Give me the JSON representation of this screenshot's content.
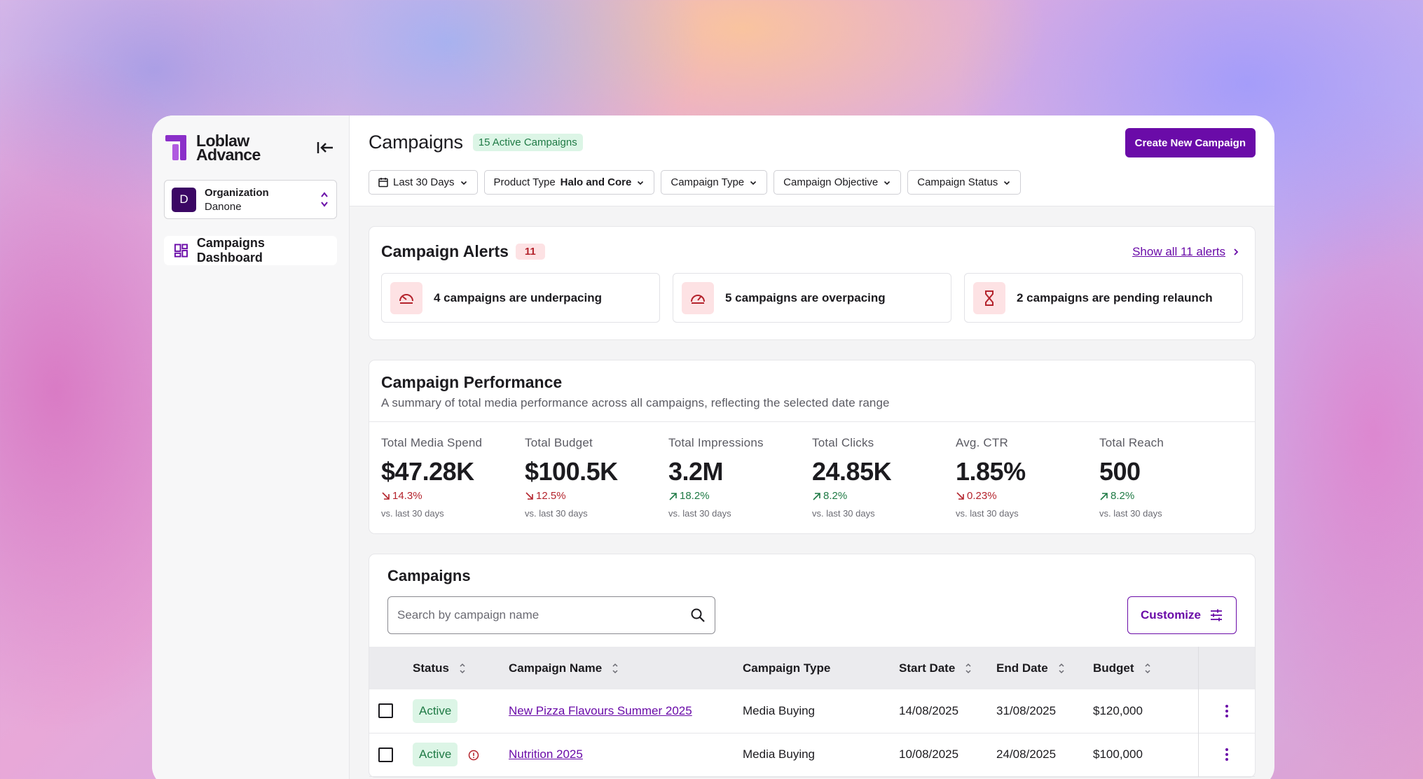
{
  "brand": {
    "logo_line1": "Loblaw",
    "logo_line2": "Advance",
    "accent": "#6a0ba8"
  },
  "sidebar": {
    "org_initial": "D",
    "org_label": "Organization",
    "org_value": "Danone",
    "nav": [
      {
        "label": "Campaigns Dashboard",
        "icon": "dashboard-grid-icon"
      }
    ]
  },
  "header": {
    "title": "Campaigns",
    "active_badge": "15 Active Campaigns",
    "create_button": "Create New Campaign",
    "filters": {
      "date": "Last 30 Days",
      "product_type_label": "Product Type",
      "product_type_value": "Halo and Core",
      "campaign_type": "Campaign Type",
      "campaign_objective": "Campaign Objective",
      "campaign_status": "Campaign Status"
    }
  },
  "alerts": {
    "title": "Campaign Alerts",
    "count": "11",
    "show_all": "Show all 11 alerts",
    "items": [
      {
        "text": "4 campaigns are underpacing",
        "icon": "speedometer-low-icon"
      },
      {
        "text": "5 campaigns are overpacing",
        "icon": "speedometer-high-icon"
      },
      {
        "text": "2 campaigns are pending relaunch",
        "icon": "hourglass-icon"
      }
    ]
  },
  "performance": {
    "title": "Campaign Performance",
    "subtitle": "A summary of total media performance across all campaigns, reflecting the selected date range",
    "metrics": [
      {
        "label": "Total Media Spend",
        "value": "$47.28K",
        "delta": "14.3%",
        "direction": "down",
        "note": "vs. last 30 days"
      },
      {
        "label": "Total Budget",
        "value": "$100.5K",
        "delta": "12.5%",
        "direction": "down",
        "note": "vs. last 30 days"
      },
      {
        "label": "Total Impressions",
        "value": "3.2M",
        "delta": "18.2%",
        "direction": "up",
        "note": "vs. last 30 days"
      },
      {
        "label": "Total Clicks",
        "value": "24.85K",
        "delta": "8.2%",
        "direction": "up",
        "note": "vs. last 30 days"
      },
      {
        "label": "Avg. CTR",
        "value": "1.85%",
        "delta": "0.23%",
        "direction": "down",
        "note": "vs. last 30 days"
      },
      {
        "label": "Total Reach",
        "value": "500",
        "delta": "8.2%",
        "direction": "up",
        "note": "vs. last 30 days"
      }
    ]
  },
  "campaigns": {
    "title": "Campaigns",
    "search_placeholder": "Search by campaign name",
    "customize": "Customize",
    "columns": [
      "Status",
      "Campaign Name",
      "Campaign Type",
      "Start Date",
      "End Date",
      "Budget"
    ],
    "rows": [
      {
        "status": "Active",
        "name": "New Pizza Flavours Summer 2025",
        "type": "Media Buying",
        "start": "14/08/2025",
        "end": "31/08/2025",
        "budget": "$120,000"
      },
      {
        "status": "Active",
        "name": "Nutrition 2025",
        "type": "Media Buying",
        "start": "10/08/2025",
        "end": "24/08/2025",
        "budget": "$100,000"
      }
    ]
  }
}
